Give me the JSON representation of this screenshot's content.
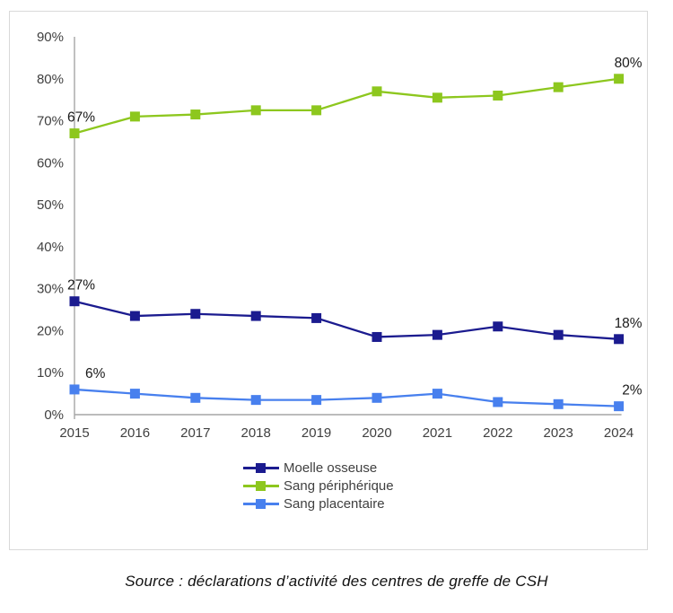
{
  "chart_data": {
    "type": "line",
    "x": [
      "2015",
      "2016",
      "2017",
      "2018",
      "2019",
      "2020",
      "2021",
      "2022",
      "2023",
      "2024"
    ],
    "series": [
      {
        "name": "Moelle osseuse",
        "color": "#1b1b8f",
        "values": [
          27,
          23.5,
          24,
          23.5,
          23,
          18.5,
          19,
          21,
          19,
          18
        ],
        "label_first": "27%",
        "label_last": "18%"
      },
      {
        "name": "Sang périphérique",
        "color": "#8dc71e",
        "values": [
          67,
          71,
          71.5,
          72.5,
          72.5,
          77,
          75.5,
          76,
          78,
          80
        ],
        "label_first": "67%",
        "label_last": "80%"
      },
      {
        "name": "Sang placentaire",
        "color": "#4880ee",
        "values": [
          6,
          5,
          4,
          3.5,
          3.5,
          4,
          5,
          3,
          2.5,
          2
        ],
        "label_first": "6%",
        "label_last": "2%"
      }
    ],
    "title": "",
    "xlabel": "",
    "ylabel": "",
    "ylim": [
      0,
      90
    ],
    "ytick_step": 10,
    "ytick_labels": [
      "0%",
      "10%",
      "20%",
      "30%",
      "40%",
      "50%",
      "60%",
      "70%",
      "80%",
      "90%"
    ],
    "grid": false,
    "legend_position": "bottom"
  },
  "colors": {
    "axis_line": "#a6a6a6",
    "axis_text": "#404040",
    "data_label": "#1a1a1a",
    "box_border": "#d9d9d9"
  },
  "source_note": "Source : déclarations d’activité des centres de greffe de CSH"
}
